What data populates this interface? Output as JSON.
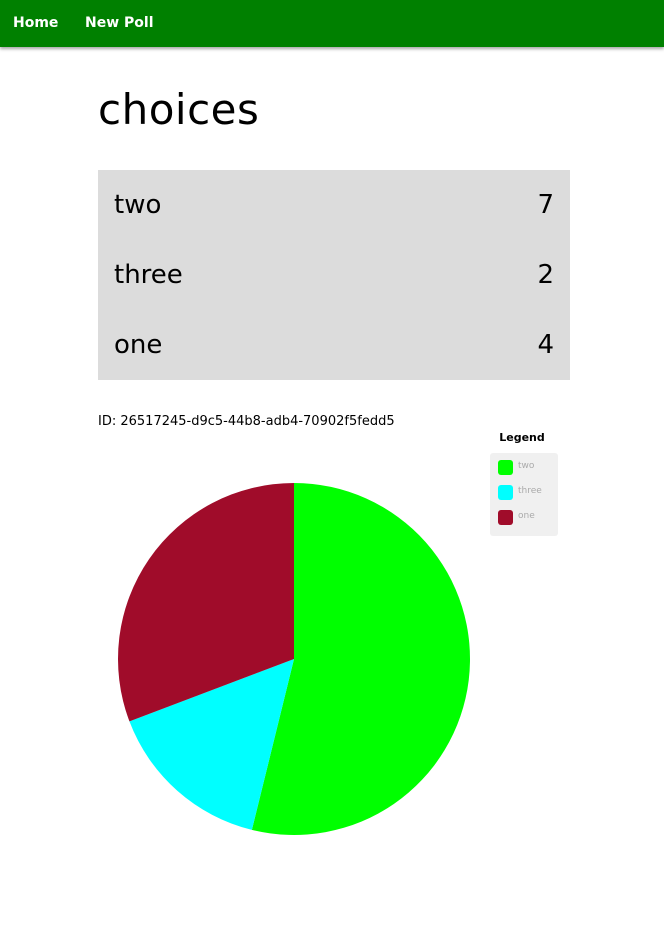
{
  "nav": {
    "home_label": "Home",
    "new_poll_label": "New Poll"
  },
  "poll": {
    "title": "choices",
    "id_text": "ID: 26517245-d9c5-44b8-adb4-70902f5fedd5",
    "choices": [
      {
        "name": "two",
        "count": "7"
      },
      {
        "name": "three",
        "count": "2"
      },
      {
        "name": "one",
        "count": "4"
      }
    ]
  },
  "legend": {
    "title": "Legend",
    "items": [
      {
        "label": "two",
        "color": "#00ff00"
      },
      {
        "label": "three",
        "color": "#00ffff"
      },
      {
        "label": "one",
        "color": "#a00c2a"
      }
    ]
  },
  "chart_data": {
    "type": "pie",
    "categories": [
      "two",
      "three",
      "one"
    ],
    "values": [
      7,
      2,
      4
    ],
    "colors": [
      "#00ff00",
      "#00ffff",
      "#a00c2a"
    ],
    "legend_title": "Legend",
    "legend_position": "top-right"
  }
}
